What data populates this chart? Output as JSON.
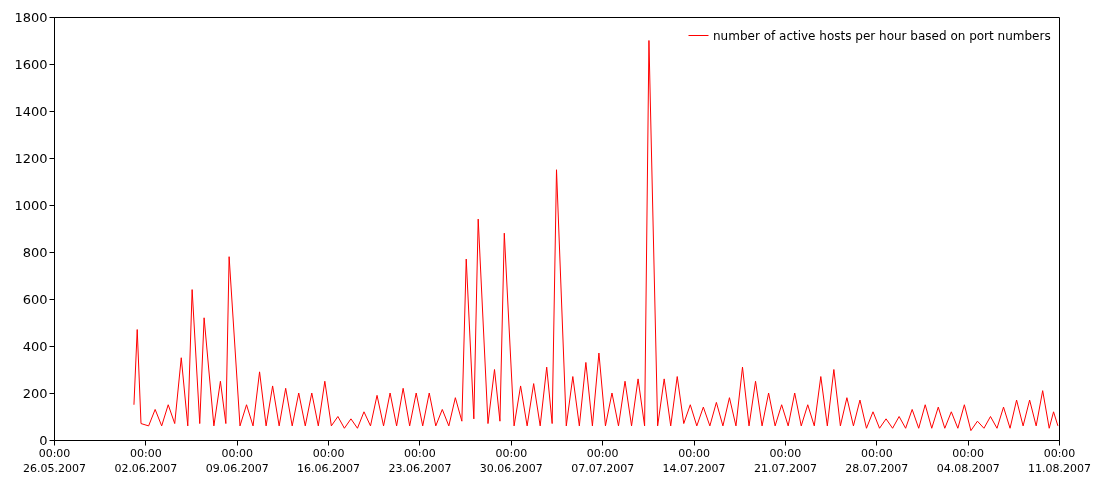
{
  "chart_data": {
    "type": "line",
    "grid": false,
    "legend": "top right",
    "line_style": "solid",
    "xlim": [
      "2007-05-26",
      "2007-08-11"
    ],
    "xticks": [
      {
        "value": "2007-05-26",
        "label": "00:00\n26.05.2007"
      },
      {
        "value": "2007-06-02",
        "label": "00:00\n02.06.2007"
      },
      {
        "value": "2007-06-09",
        "label": "00:00\n09.06.2007"
      },
      {
        "value": "2007-06-16",
        "label": "00:00\n16.06.2007"
      },
      {
        "value": "2007-06-23",
        "label": "00:00\n23.06.2007"
      },
      {
        "value": "2007-06-30",
        "label": "00:00\n30.06.2007"
      },
      {
        "value": "2007-07-07",
        "label": "00:00\n07.07.2007"
      },
      {
        "value": "2007-07-14",
        "label": "00:00\n14.07.2007"
      },
      {
        "value": "2007-07-21",
        "label": "00:00\n21.07.2007"
      },
      {
        "value": "2007-07-28",
        "label": "00:00\n28.07.2007"
      },
      {
        "value": "2007-08-04",
        "label": "00:00\n04.08.2007"
      },
      {
        "value": "2007-08-11",
        "label": "00:00\n11.08.2007"
      }
    ],
    "ylim": [
      0,
      1800
    ],
    "yticks": [
      0,
      200,
      400,
      600,
      800,
      1000,
      1200,
      1400,
      1600,
      1800
    ],
    "series": [
      {
        "name": "number of active hosts per hour based on port numbers",
        "color": "#ff0000",
        "x": [
          "2007-06-01T03:00",
          "2007-06-01T09:00",
          "2007-06-01T16:00",
          "2007-06-02T06:00",
          "2007-06-02T18:00",
          "2007-06-03T06:00",
          "2007-06-03T18:00",
          "2007-06-04T06:00",
          "2007-06-04T18:00",
          "2007-06-05T06:00",
          "2007-06-05T14:00",
          "2007-06-06T04:00",
          "2007-06-06T12:00",
          "2007-06-07T06:00",
          "2007-06-07T18:00",
          "2007-06-08T04:00",
          "2007-06-08T10:00",
          "2007-06-09T06:00",
          "2007-06-09T18:00",
          "2007-06-10T06:00",
          "2007-06-10T18:00",
          "2007-06-11T06:00",
          "2007-06-11T18:00",
          "2007-06-12T06:00",
          "2007-06-12T18:00",
          "2007-06-13T06:00",
          "2007-06-13T18:00",
          "2007-06-14T06:00",
          "2007-06-14T18:00",
          "2007-06-15T06:00",
          "2007-06-15T18:00",
          "2007-06-16T06:00",
          "2007-06-16T18:00",
          "2007-06-17T06:00",
          "2007-06-17T18:00",
          "2007-06-18T06:00",
          "2007-06-18T18:00",
          "2007-06-19T06:00",
          "2007-06-19T18:00",
          "2007-06-20T06:00",
          "2007-06-20T18:00",
          "2007-06-21T06:00",
          "2007-06-21T18:00",
          "2007-06-22T06:00",
          "2007-06-22T18:00",
          "2007-06-23T06:00",
          "2007-06-23T18:00",
          "2007-06-24T06:00",
          "2007-06-24T18:00",
          "2007-06-25T06:00",
          "2007-06-25T18:00",
          "2007-06-26T06:00",
          "2007-06-26T14:00",
          "2007-06-27T04:00",
          "2007-06-27T12:00",
          "2007-06-28T06:00",
          "2007-06-28T18:00",
          "2007-06-29T04:00",
          "2007-06-29T12:00",
          "2007-06-30T06:00",
          "2007-06-30T18:00",
          "2007-07-01T06:00",
          "2007-07-01T18:00",
          "2007-07-02T06:00",
          "2007-07-02T18:00",
          "2007-07-03T04:00",
          "2007-07-03T12:00",
          "2007-07-04T06:00",
          "2007-07-04T18:00",
          "2007-07-05T06:00",
          "2007-07-05T18:00",
          "2007-07-06T06:00",
          "2007-07-06T18:00",
          "2007-07-07T06:00",
          "2007-07-07T18:00",
          "2007-07-08T06:00",
          "2007-07-08T18:00",
          "2007-07-09T06:00",
          "2007-07-09T18:00",
          "2007-07-10T06:00",
          "2007-07-10T14:00",
          "2007-07-11T06:00",
          "2007-07-11T18:00",
          "2007-07-12T06:00",
          "2007-07-12T18:00",
          "2007-07-13T06:00",
          "2007-07-13T18:00",
          "2007-07-14T06:00",
          "2007-07-14T18:00",
          "2007-07-15T06:00",
          "2007-07-15T18:00",
          "2007-07-16T06:00",
          "2007-07-16T18:00",
          "2007-07-17T06:00",
          "2007-07-17T18:00",
          "2007-07-18T06:00",
          "2007-07-18T18:00",
          "2007-07-19T06:00",
          "2007-07-19T18:00",
          "2007-07-20T06:00",
          "2007-07-20T18:00",
          "2007-07-21T06:00",
          "2007-07-21T18:00",
          "2007-07-22T06:00",
          "2007-07-22T18:00",
          "2007-07-23T06:00",
          "2007-07-23T18:00",
          "2007-07-24T06:00",
          "2007-07-24T18:00",
          "2007-07-25T06:00",
          "2007-07-25T18:00",
          "2007-07-26T06:00",
          "2007-07-26T18:00",
          "2007-07-27T06:00",
          "2007-07-27T18:00",
          "2007-07-28T06:00",
          "2007-07-28T18:00",
          "2007-07-29T06:00",
          "2007-07-29T18:00",
          "2007-07-30T06:00",
          "2007-07-30T18:00",
          "2007-07-31T06:00",
          "2007-07-31T18:00",
          "2007-08-01T06:00",
          "2007-08-01T18:00",
          "2007-08-02T06:00",
          "2007-08-02T18:00",
          "2007-08-03T06:00",
          "2007-08-03T18:00",
          "2007-08-04T06:00",
          "2007-08-04T18:00",
          "2007-08-05T06:00",
          "2007-08-05T18:00",
          "2007-08-06T06:00",
          "2007-08-06T18:00",
          "2007-08-07T06:00",
          "2007-08-07T18:00",
          "2007-08-08T06:00",
          "2007-08-08T18:00",
          "2007-08-09T06:00",
          "2007-08-09T18:00",
          "2007-08-10T06:00",
          "2007-08-10T14:00",
          "2007-08-10T22:00"
        ],
        "values": [
          150,
          470,
          70,
          60,
          130,
          60,
          150,
          70,
          350,
          60,
          640,
          70,
          520,
          60,
          250,
          70,
          780,
          60,
          150,
          60,
          290,
          60,
          230,
          60,
          220,
          60,
          200,
          60,
          200,
          60,
          250,
          60,
          100,
          50,
          90,
          50,
          120,
          60,
          190,
          60,
          200,
          60,
          220,
          60,
          200,
          60,
          200,
          60,
          130,
          60,
          180,
          80,
          770,
          90,
          940,
          70,
          300,
          80,
          880,
          60,
          230,
          60,
          240,
          60,
          310,
          70,
          1150,
          60,
          270,
          60,
          330,
          60,
          370,
          60,
          200,
          60,
          250,
          60,
          260,
          60,
          1700,
          60,
          260,
          60,
          270,
          70,
          150,
          60,
          140,
          60,
          160,
          60,
          180,
          60,
          310,
          60,
          250,
          60,
          200,
          60,
          150,
          60,
          200,
          60,
          150,
          60,
          270,
          60,
          300,
          60,
          180,
          60,
          170,
          50,
          120,
          50,
          90,
          50,
          100,
          50,
          130,
          50,
          150,
          50,
          140,
          50,
          120,
          50,
          150,
          40,
          80,
          50,
          100,
          50,
          140,
          50,
          170,
          60,
          170,
          60,
          210,
          50,
          120,
          60
        ]
      }
    ]
  }
}
